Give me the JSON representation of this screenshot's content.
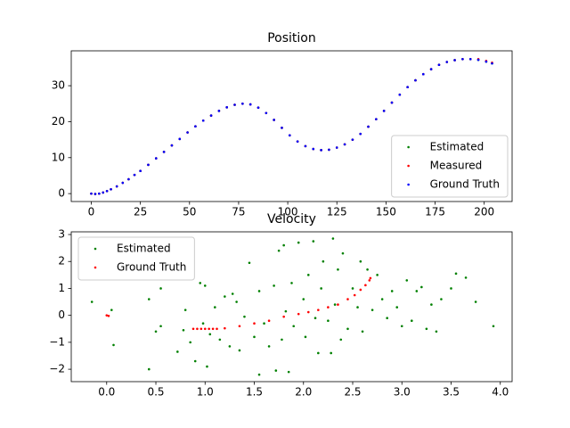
{
  "chart_data": [
    {
      "type": "scatter",
      "title": "Position",
      "x": [
        0,
        2,
        4,
        6,
        8,
        10,
        13,
        16,
        19,
        22,
        25,
        29,
        33,
        37,
        41,
        45,
        49,
        53,
        57,
        61,
        65,
        69,
        73,
        77,
        81,
        85,
        89,
        93,
        97,
        101,
        105,
        109,
        113,
        117,
        121,
        125,
        129,
        133,
        137,
        141,
        145,
        149,
        153,
        157,
        161,
        165,
        169,
        173,
        177,
        181,
        185,
        189,
        193,
        197,
        201,
        204
      ],
      "series": [
        {
          "name": "Estimated",
          "color": "#008000",
          "values": [
            0,
            -0.1,
            0,
            0.3,
            0.7,
            1.2,
            2,
            3,
            4,
            5.2,
            6.3,
            8,
            9.8,
            11.6,
            13.4,
            15.2,
            17,
            18.7,
            20.3,
            21.7,
            23,
            24,
            24.7,
            25,
            24.8,
            23.9,
            22.4,
            20.5,
            18.3,
            16.2,
            14.5,
            13.2,
            12.4,
            12.1,
            12.2,
            12.8,
            13.7,
            15,
            16.6,
            18.6,
            20.7,
            23,
            25.3,
            27.5,
            29.6,
            31.5,
            33.2,
            34.6,
            35.8,
            36.6,
            37.1,
            37.4,
            37.4,
            37.2,
            36.7,
            36.2
          ]
        },
        {
          "name": "Measured",
          "color": "#ff0000",
          "values": [
            0,
            -0.1,
            0,
            0.3,
            0.7,
            1.2,
            2,
            3,
            4,
            5.2,
            6.3,
            8,
            9.8,
            11.6,
            13.4,
            15.2,
            17,
            18.7,
            20.3,
            21.7,
            23,
            24,
            24.7,
            25,
            24.8,
            23.9,
            22.4,
            20.5,
            18.3,
            16.2,
            14.5,
            13.2,
            12.4,
            12.1,
            12.2,
            12.8,
            13.7,
            15,
            16.6,
            18.6,
            20.7,
            23,
            25.3,
            27.5,
            29.6,
            31.5,
            33.2,
            34.6,
            35.8,
            36.6,
            37.1,
            37.4,
            37.4,
            37.4,
            36.9,
            36.4
          ]
        },
        {
          "name": "Ground Truth",
          "color": "#0000ff",
          "values": [
            0,
            -0.1,
            0,
            0.3,
            0.7,
            1.2,
            2,
            3,
            4,
            5.2,
            6.3,
            8,
            9.8,
            11.6,
            13.4,
            15.2,
            17,
            18.7,
            20.3,
            21.7,
            23,
            24,
            24.7,
            25,
            24.8,
            23.9,
            22.4,
            20.5,
            18.3,
            16.2,
            14.5,
            13.2,
            12.4,
            12.1,
            12.2,
            12.8,
            13.7,
            15,
            16.6,
            18.6,
            20.7,
            23,
            25.3,
            27.5,
            29.6,
            31.5,
            33.2,
            34.6,
            35.8,
            36.6,
            37.1,
            37.4,
            37.4,
            37.2,
            36.7,
            36.2
          ]
        }
      ],
      "xlim": [
        -10.2,
        214.2
      ],
      "ylim": [
        -2.2,
        39.7
      ],
      "xticks": [
        0,
        25,
        50,
        75,
        100,
        125,
        150,
        175,
        200
      ],
      "yticks": [
        0,
        10,
        20,
        30
      ],
      "legend": "lower right"
    },
    {
      "type": "scatter",
      "title": "Velocity",
      "series": [
        {
          "name": "Estimated",
          "color": "#008000",
          "x": [
            -0.15,
            0.05,
            0.07,
            0.43,
            0.43,
            0.5,
            0.55,
            0.55,
            0.72,
            0.78,
            0.8,
            0.85,
            0.9,
            0.95,
            0.98,
            1.0,
            1.02,
            1.05,
            1.1,
            1.15,
            1.2,
            1.25,
            1.28,
            1.32,
            1.35,
            1.4,
            1.45,
            1.5,
            1.55,
            1.55,
            1.6,
            1.65,
            1.7,
            1.72,
            1.75,
            1.78,
            1.8,
            1.82,
            1.85,
            1.88,
            1.9,
            1.95,
            2.0,
            2.02,
            2.05,
            2.1,
            2.12,
            2.15,
            2.18,
            2.2,
            2.25,
            2.28,
            2.3,
            2.32,
            2.35,
            2.38,
            2.4,
            2.45,
            2.5,
            2.55,
            2.58,
            2.6,
            2.65,
            2.7,
            2.75,
            2.8,
            2.85,
            2.9,
            2.95,
            3.0,
            3.05,
            3.1,
            3.15,
            3.2,
            3.25,
            3.3,
            3.35,
            3.4,
            3.5,
            3.55,
            3.65,
            3.75,
            3.93
          ],
          "values": [
            0.5,
            0.2,
            -1.1,
            -2.0,
            0.6,
            -0.6,
            -0.4,
            1.0,
            -1.35,
            -0.55,
            0.2,
            -1.0,
            -1.7,
            1.2,
            -0.3,
            1.1,
            -1.9,
            -0.7,
            0.3,
            -0.9,
            0.7,
            -1.15,
            0.8,
            0.5,
            -1.3,
            -0.05,
            1.95,
            -0.8,
            -2.2,
            0.9,
            -0.3,
            -1.15,
            1.1,
            -2.05,
            2.4,
            -0.9,
            2.6,
            0.15,
            -2.1,
            1.2,
            -0.4,
            2.7,
            0.6,
            -0.8,
            1.5,
            2.75,
            -0.1,
            -1.4,
            1.0,
            2.0,
            -0.2,
            -1.4,
            2.85,
            0.4,
            1.7,
            -0.9,
            2.3,
            -0.5,
            1.0,
            0.3,
            2.0,
            -0.6,
            1.7,
            0.2,
            1.5,
            0.6,
            -0.1,
            0.9,
            0.3,
            -0.4,
            1.3,
            -0.2,
            0.9,
            1.05,
            -0.5,
            0.4,
            -0.6,
            0.6,
            1.0,
            1.55,
            1.4,
            0.5,
            -0.4
          ]
        },
        {
          "name": "Ground Truth",
          "color": "#ff0000",
          "x": [
            0,
            0.02,
            0.88,
            0.92,
            0.96,
            1.0,
            1.04,
            1.08,
            1.12,
            1.2,
            1.35,
            1.5,
            1.65,
            1.8,
            1.95,
            2.05,
            2.15,
            2.25,
            2.35,
            2.45,
            2.52,
            2.58,
            2.63,
            2.67,
            2.68
          ],
          "values": [
            0,
            -0.02,
            -0.5,
            -0.5,
            -0.5,
            -0.5,
            -0.5,
            -0.5,
            -0.5,
            -0.48,
            -0.4,
            -0.3,
            -0.2,
            -0.05,
            0.05,
            0.12,
            0.2,
            0.3,
            0.4,
            0.6,
            0.75,
            0.95,
            1.12,
            1.3,
            1.38
          ]
        }
      ],
      "xlim": [
        -0.36,
        4.12
      ],
      "ylim": [
        -2.46,
        3.1
      ],
      "xticks": [
        {
          "value": 0,
          "label": "0.0"
        },
        {
          "value": 0.5,
          "label": "0.5"
        },
        {
          "value": 1,
          "label": "1.0"
        },
        {
          "value": 1.5,
          "label": "1.5"
        },
        {
          "value": 2,
          "label": "2.0"
        },
        {
          "value": 2.5,
          "label": "2.5"
        },
        {
          "value": 3,
          "label": "3.0"
        },
        {
          "value": 3.5,
          "label": "3.5"
        },
        {
          "value": 4,
          "label": "4.0"
        }
      ],
      "yticks": [
        {
          "value": -2,
          "label": "−2"
        },
        {
          "value": -1,
          "label": "−1"
        },
        0,
        1,
        2,
        3
      ],
      "legend": "upper left"
    }
  ]
}
